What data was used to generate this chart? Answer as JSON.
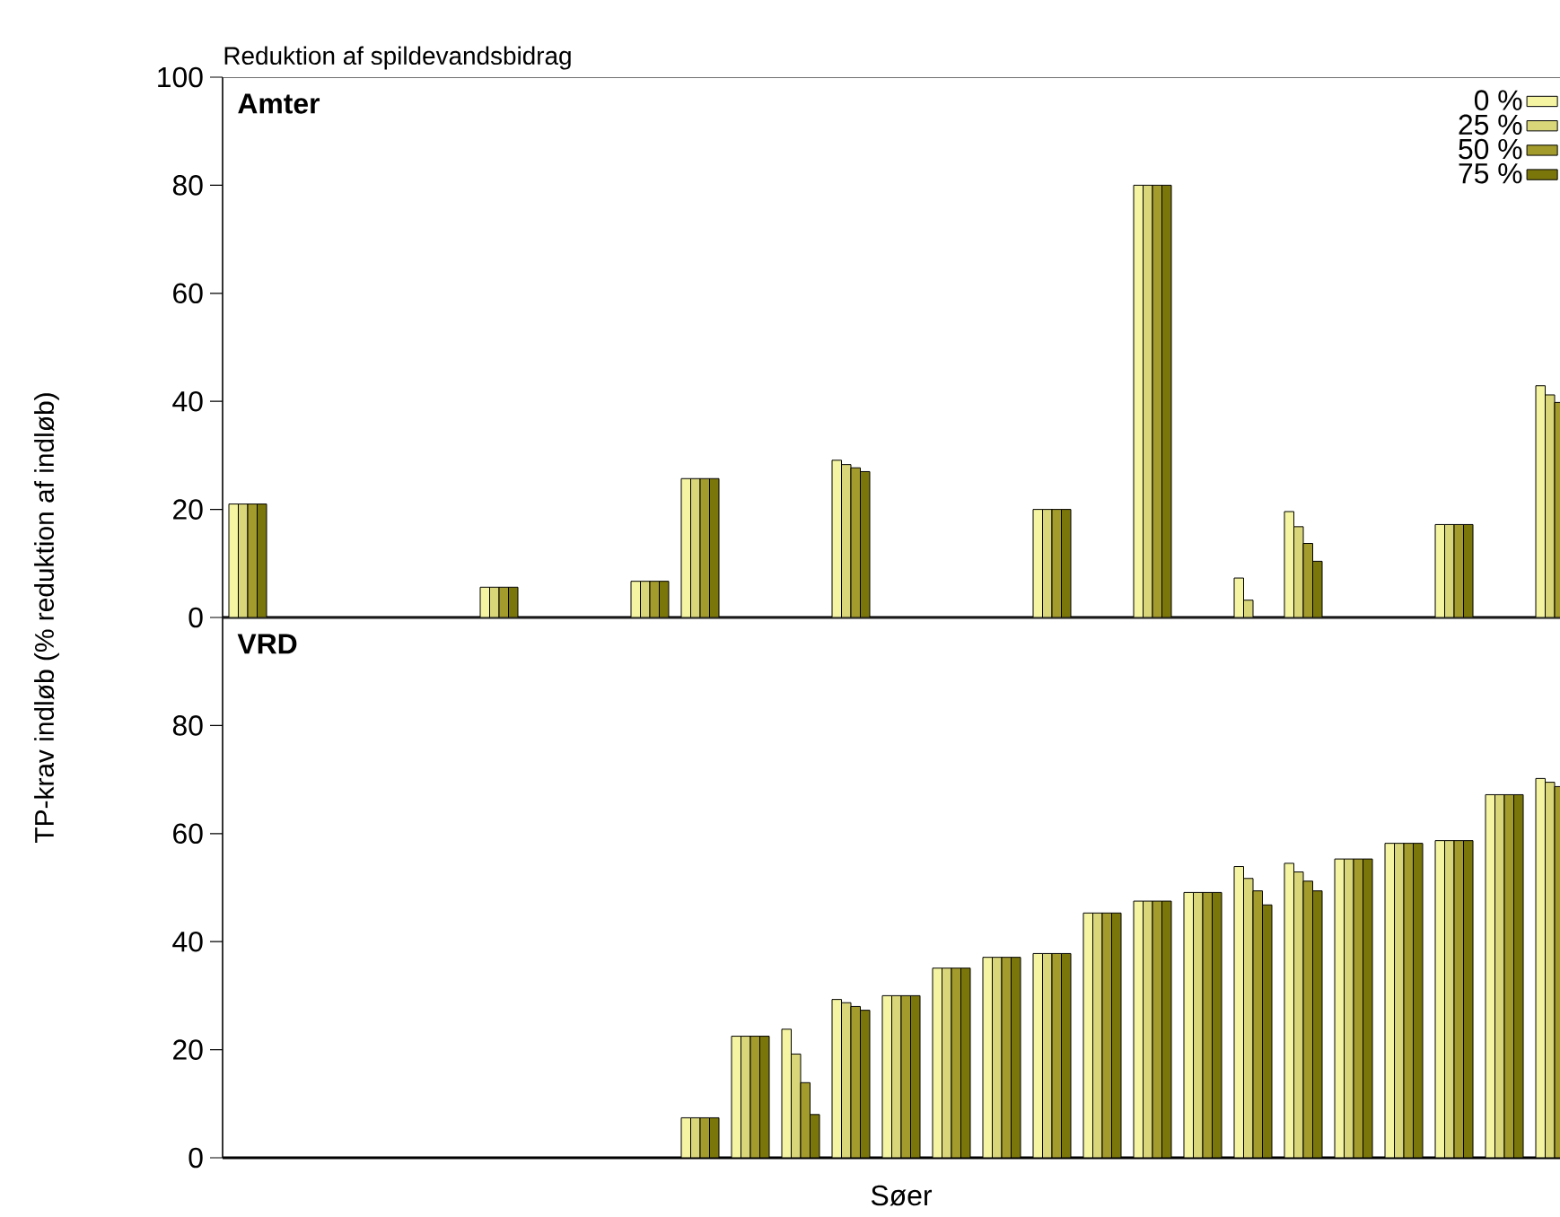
{
  "chart_data": [
    {
      "type": "bar",
      "title": "Amter",
      "legend_title": "Reduktion af spildevandsbidrag",
      "ylabel": "TP-krav indløb (% reduktion af indløb)",
      "categories": [
        null,
        null,
        null,
        null,
        null,
        null,
        null,
        null,
        null,
        null,
        null,
        null,
        null,
        null,
        null,
        null,
        null,
        null,
        null,
        null,
        null,
        null,
        null,
        null,
        null,
        null,
        null
      ],
      "series": [
        {
          "name": "0 %",
          "color": "#f4f4a2",
          "values": [
            21,
            null,
            null,
            null,
            null,
            5.6,
            null,
            null,
            6.7,
            25.7,
            null,
            null,
            29.1,
            null,
            null,
            null,
            20.0,
            null,
            80,
            null,
            7.3,
            19.6,
            null,
            null,
            17.2,
            null,
            42.9
          ]
        },
        {
          "name": "25 %",
          "color": "#d9d67a",
          "values": [
            21,
            null,
            null,
            null,
            null,
            5.6,
            null,
            null,
            6.7,
            25.7,
            null,
            null,
            28.3,
            null,
            null,
            null,
            20.0,
            null,
            80,
            null,
            3.2,
            16.8,
            null,
            null,
            17.2,
            null,
            41.2
          ]
        },
        {
          "name": "50 %",
          "color": "#a39b2c",
          "values": [
            21,
            null,
            null,
            null,
            null,
            5.6,
            null,
            null,
            6.7,
            25.7,
            null,
            null,
            27.7,
            null,
            null,
            null,
            20.0,
            null,
            80,
            null,
            null,
            13.7,
            null,
            null,
            17.2,
            null,
            39.8
          ]
        },
        {
          "name": "75 %",
          "color": "#7b760a",
          "values": [
            21,
            null,
            null,
            null,
            null,
            5.6,
            null,
            null,
            6.7,
            25.7,
            null,
            null,
            27.0,
            null,
            null,
            null,
            20.0,
            null,
            80,
            null,
            null,
            10.4,
            null,
            null,
            17.2,
            null,
            null
          ]
        }
      ],
      "ylim": [
        0,
        100
      ],
      "yticks": [
        0,
        20,
        40,
        60,
        80,
        100
      ],
      "tick_labels": "y",
      "legend": "top right"
    },
    {
      "type": "bar",
      "title": "VRD",
      "xlabel": "Søer",
      "categories": [
        null,
        null,
        null,
        null,
        null,
        null,
        null,
        null,
        null,
        null,
        null,
        null,
        null,
        null,
        null,
        null,
        null,
        null,
        null,
        null,
        null,
        null,
        null,
        null,
        null,
        null,
        null
      ],
      "series": [
        {
          "color": "#f4f4a2",
          "values": [
            null,
            null,
            null,
            null,
            null,
            null,
            null,
            null,
            null,
            7.4,
            22.5,
            23.8,
            29.3,
            30.0,
            35.1,
            37.1,
            37.8,
            45.3,
            47.5,
            49.1,
            53.9,
            54.5,
            55.3,
            58.2,
            58.7,
            67.2,
            70.2
          ]
        },
        {
          "color": "#d9d67a",
          "values": [
            null,
            null,
            null,
            null,
            null,
            null,
            null,
            null,
            null,
            7.4,
            22.5,
            19.2,
            28.7,
            30.0,
            35.1,
            37.1,
            37.8,
            45.3,
            47.5,
            49.1,
            51.7,
            52.9,
            55.3,
            58.2,
            58.7,
            67.2,
            69.5
          ]
        },
        {
          "color": "#a39b2c",
          "values": [
            null,
            null,
            null,
            null,
            null,
            null,
            null,
            null,
            null,
            7.4,
            22.5,
            13.9,
            28.0,
            30.0,
            35.1,
            37.1,
            37.8,
            45.3,
            47.5,
            49.1,
            49.4,
            51.2,
            55.3,
            58.2,
            58.7,
            67.2,
            68.7
          ]
        },
        {
          "color": "#7b760a",
          "values": [
            null,
            null,
            null,
            null,
            null,
            null,
            null,
            null,
            null,
            7.4,
            22.5,
            8.0,
            27.3,
            30.0,
            35.1,
            37.1,
            37.8,
            45.3,
            47.5,
            49.1,
            46.8,
            49.4,
            55.3,
            58.2,
            58.7,
            67.2,
            null
          ]
        }
      ],
      "ylim": [
        0,
        100
      ],
      "yticks": [
        0,
        20,
        40,
        60,
        80
      ],
      "tick_labels": "y"
    }
  ]
}
